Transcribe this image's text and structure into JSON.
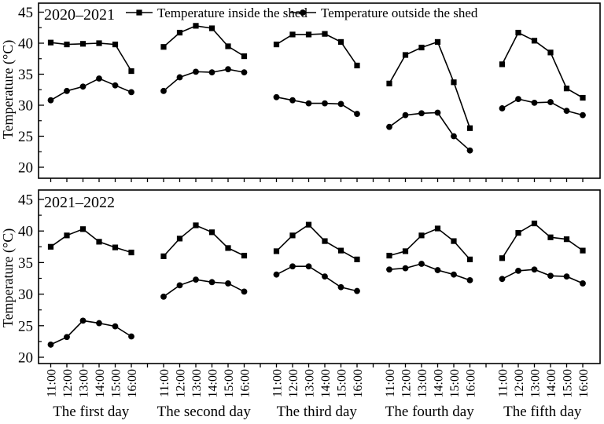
{
  "colors": {
    "foreground": "#000000",
    "background": "#ffffff"
  },
  "legend": {
    "items": [
      {
        "label": "Temperature inside the shed",
        "marker": "square"
      },
      {
        "label": "Temperature outside the shed",
        "marker": "circle"
      }
    ]
  },
  "chart_data": [
    {
      "type": "line",
      "panel_label": "2020–2021",
      "ylabel": "Temperature (°C)",
      "ylim": [
        20,
        45
      ],
      "yticks": [
        20,
        25,
        30,
        35,
        40,
        45
      ],
      "grid": false,
      "legend_position": "top-inside",
      "day_labels": [
        "The first day",
        "The second day",
        "The third day",
        "The fourth day",
        "The fifth day"
      ],
      "times": [
        "11:00",
        "12:00",
        "13:00",
        "14:00",
        "15:00",
        "16:00"
      ],
      "series": [
        {
          "name": "Temperature inside the shed",
          "marker": "square",
          "values": [
            [
              40.1,
              39.8,
              39.9,
              40.0,
              39.8,
              35.5
            ],
            [
              39.4,
              41.7,
              42.8,
              42.4,
              39.5,
              37.9
            ],
            [
              39.8,
              41.4,
              41.4,
              41.5,
              40.2,
              36.4
            ],
            [
              33.5,
              38.1,
              39.3,
              40.2,
              33.7,
              26.3
            ],
            [
              36.6,
              41.7,
              40.4,
              38.5,
              32.7,
              31.2
            ]
          ]
        },
        {
          "name": "Temperature outside the shed",
          "marker": "circle",
          "values": [
            [
              30.8,
              32.3,
              33.0,
              34.3,
              33.2,
              32.1
            ],
            [
              32.3,
              34.5,
              35.4,
              35.3,
              35.8,
              35.3
            ],
            [
              31.3,
              30.8,
              30.3,
              30.3,
              30.2,
              28.6
            ],
            [
              26.5,
              28.4,
              28.7,
              28.8,
              25.0,
              22.7
            ],
            [
              29.5,
              31.0,
              30.4,
              30.5,
              29.1,
              28.4
            ]
          ]
        }
      ]
    },
    {
      "type": "line",
      "panel_label": "2021–2022",
      "ylabel": "Temperature (°C)",
      "ylim": [
        20,
        45
      ],
      "yticks": [
        20,
        25,
        30,
        35,
        40,
        45
      ],
      "grid": false,
      "day_labels": [
        "The first day",
        "The second day",
        "The third day",
        "The fourth day",
        "The fifth day"
      ],
      "times": [
        "11:00",
        "12:00",
        "13:00",
        "14:00",
        "15:00",
        "16:00"
      ],
      "series": [
        {
          "name": "Temperature inside the shed",
          "marker": "square",
          "values": [
            [
              37.5,
              39.3,
              40.3,
              38.3,
              37.4,
              36.6
            ],
            [
              36.0,
              38.8,
              40.9,
              39.8,
              37.3,
              36.1
            ],
            [
              36.8,
              39.3,
              41.0,
              38.4,
              36.9,
              35.5
            ],
            [
              36.1,
              36.8,
              39.3,
              40.4,
              38.4,
              35.5
            ],
            [
              35.7,
              39.7,
              41.2,
              39.0,
              38.7,
              36.9
            ]
          ]
        },
        {
          "name": "Temperature outside the shed",
          "marker": "circle",
          "values": [
            [
              22.0,
              23.2,
              25.8,
              25.4,
              24.9,
              23.3
            ],
            [
              29.6,
              31.4,
              32.3,
              31.9,
              31.7,
              30.4
            ],
            [
              33.1,
              34.4,
              34.4,
              32.8,
              31.1,
              30.5
            ],
            [
              33.9,
              34.1,
              34.8,
              33.8,
              33.1,
              32.2
            ],
            [
              32.4,
              33.7,
              33.9,
              32.9,
              32.8,
              31.7
            ]
          ]
        }
      ]
    }
  ]
}
